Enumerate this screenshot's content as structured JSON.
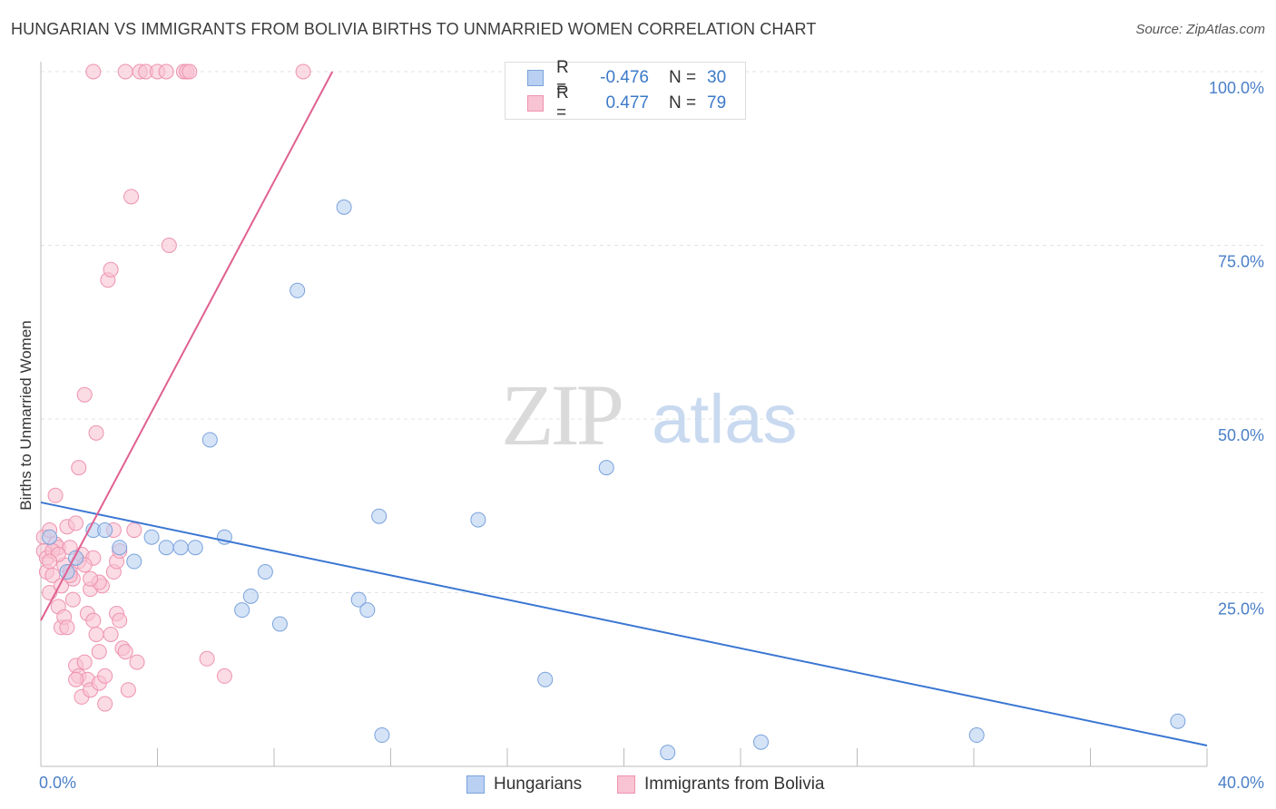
{
  "title": "HUNGARIAN VS IMMIGRANTS FROM BOLIVIA BIRTHS TO UNMARRIED WOMEN CORRELATION CHART",
  "source": "Source: ZipAtlas.com",
  "watermark": {
    "zip": "ZIP",
    "atlas": "atlas"
  },
  "legend": {
    "rows": [
      {
        "r_label": "R =",
        "r_value": "-0.476",
        "n_label": "N =",
        "n_value": "30"
      },
      {
        "r_label": "R =",
        "r_value": "0.477",
        "n_label": "N =",
        "n_value": "79"
      }
    ]
  },
  "bottom_legend": [
    "Hungarians",
    "Immigrants from Bolivia"
  ],
  "colors": {
    "blue_fill": "#b9d0f2",
    "blue_stroke": "#7aa3dc",
    "blue_line": "#3a76d2",
    "pink_fill": "#f8c3d2",
    "pink_stroke": "#ee93b0",
    "pink_line": "#e06090",
    "tick_text": "#4a7fc8",
    "grid": "#e3e3e3"
  },
  "chart_data": {
    "type": "scatter",
    "title": "HUNGARIAN VS IMMIGRANTS FROM BOLIVIA BIRTHS TO UNMARRIED WOMEN CORRELATION CHART",
    "xlabel": "",
    "ylabel": "Births to Unmarried Women",
    "xlim": [
      0,
      40
    ],
    "ylim": [
      0,
      100
    ],
    "x_tick_labels": [
      "0.0%",
      "40.0%"
    ],
    "y_tick_labels": [
      "25.0%",
      "50.0%",
      "75.0%",
      "100.0%"
    ],
    "y_ticks": [
      25,
      50,
      75,
      100
    ],
    "grid": true,
    "legend_position": "top-center",
    "series": [
      {
        "name": "Hungarians",
        "r": -0.476,
        "n": 30,
        "points": [
          [
            0.3,
            33.0
          ],
          [
            0.9,
            28.0
          ],
          [
            1.2,
            30.0
          ],
          [
            1.8,
            34.0
          ],
          [
            2.2,
            34.0
          ],
          [
            2.7,
            31.5
          ],
          [
            3.2,
            29.5
          ],
          [
            3.8,
            33.0
          ],
          [
            4.3,
            31.5
          ],
          [
            4.8,
            31.5
          ],
          [
            5.3,
            31.5
          ],
          [
            5.8,
            47.0
          ],
          [
            6.3,
            33.0
          ],
          [
            6.9,
            22.5
          ],
          [
            7.2,
            24.5
          ],
          [
            7.7,
            28.0
          ],
          [
            8.2,
            20.5
          ],
          [
            8.8,
            68.5
          ],
          [
            10.4,
            80.5
          ],
          [
            10.9,
            24.0
          ],
          [
            11.2,
            22.5
          ],
          [
            11.7,
            4.5
          ],
          [
            11.6,
            36.0
          ],
          [
            15.0,
            35.5
          ],
          [
            17.3,
            12.5
          ],
          [
            19.4,
            43.0
          ],
          [
            21.5,
            2.0
          ],
          [
            24.7,
            3.5
          ],
          [
            32.1,
            4.5
          ],
          [
            39.0,
            6.5
          ]
        ],
        "trend": {
          "x": [
            0,
            40
          ],
          "y": [
            38.0,
            3.0
          ]
        }
      },
      {
        "name": "Immigrants from Bolivia",
        "r": 0.477,
        "n": 79,
        "points": [
          [
            0.1,
            33.0
          ],
          [
            0.1,
            31.0
          ],
          [
            0.2,
            30.0
          ],
          [
            0.2,
            28.0
          ],
          [
            0.3,
            25.0
          ],
          [
            0.3,
            34.0
          ],
          [
            0.4,
            27.5
          ],
          [
            0.5,
            32.0
          ],
          [
            0.5,
            39.0
          ],
          [
            0.6,
            31.5
          ],
          [
            0.6,
            23.0
          ],
          [
            0.7,
            20.0
          ],
          [
            0.7,
            26.0
          ],
          [
            0.8,
            21.5
          ],
          [
            0.8,
            29.0
          ],
          [
            0.9,
            34.5
          ],
          [
            1.0,
            28.0
          ],
          [
            1.0,
            31.5
          ],
          [
            1.1,
            24.0
          ],
          [
            1.1,
            27.0
          ],
          [
            1.2,
            35.0
          ],
          [
            1.2,
            14.5
          ],
          [
            1.3,
            13.0
          ],
          [
            1.3,
            29.5
          ],
          [
            1.3,
            43.0
          ],
          [
            1.4,
            10.0
          ],
          [
            1.4,
            30.5
          ],
          [
            1.5,
            53.5
          ],
          [
            1.5,
            15.0
          ],
          [
            1.6,
            12.5
          ],
          [
            1.6,
            22.0
          ],
          [
            1.7,
            25.5
          ],
          [
            1.7,
            11.0
          ],
          [
            1.8,
            30.0
          ],
          [
            1.8,
            21.0
          ],
          [
            1.9,
            19.0
          ],
          [
            1.9,
            48.0
          ],
          [
            2.0,
            12.0
          ],
          [
            2.0,
            16.5
          ],
          [
            2.1,
            26.0
          ],
          [
            2.2,
            13.0
          ],
          [
            2.2,
            9.0
          ],
          [
            2.3,
            70.0
          ],
          [
            2.4,
            19.0
          ],
          [
            2.4,
            71.5
          ],
          [
            2.5,
            34.0
          ],
          [
            2.5,
            28.0
          ],
          [
            2.6,
            22.0
          ],
          [
            2.6,
            29.5
          ],
          [
            2.7,
            21.0
          ],
          [
            2.8,
            17.0
          ],
          [
            2.9,
            16.5
          ],
          [
            3.0,
            11.0
          ],
          [
            3.1,
            82.0
          ],
          [
            3.2,
            34.0
          ],
          [
            3.3,
            15.0
          ],
          [
            1.8,
            100.0
          ],
          [
            2.9,
            100.0
          ],
          [
            3.4,
            100.0
          ],
          [
            3.6,
            100.0
          ],
          [
            4.0,
            100.0
          ],
          [
            4.3,
            100.0
          ],
          [
            4.9,
            100.0
          ],
          [
            5.0,
            100.0
          ],
          [
            5.1,
            100.0
          ],
          [
            9.0,
            100.0
          ],
          [
            4.4,
            75.0
          ],
          [
            5.7,
            15.5
          ],
          [
            6.3,
            13.0
          ],
          [
            0.4,
            31.0
          ],
          [
            0.6,
            30.5
          ],
          [
            0.9,
            20.0
          ],
          [
            1.0,
            27.5
          ],
          [
            1.2,
            12.5
          ],
          [
            1.5,
            29.0
          ],
          [
            2.0,
            26.5
          ],
          [
            2.7,
            31.0
          ],
          [
            0.3,
            29.5
          ],
          [
            1.7,
            27.0
          ]
        ],
        "trend": {
          "x": [
            0,
            10.0
          ],
          "y": [
            21.0,
            100.0
          ]
        }
      }
    ]
  }
}
